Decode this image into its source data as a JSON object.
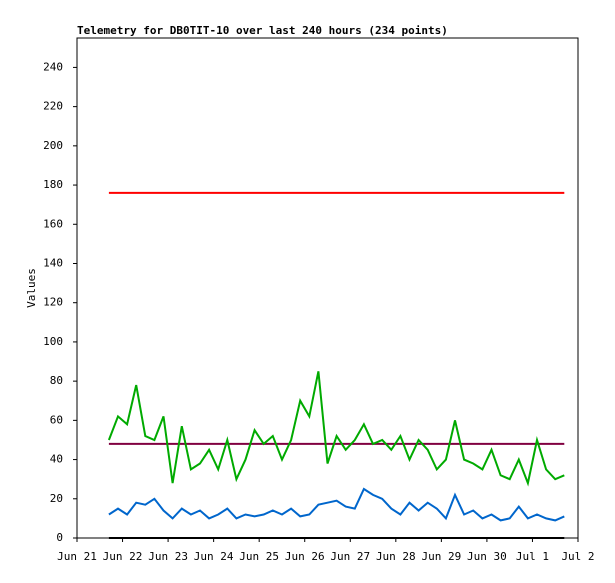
{
  "chart_data": {
    "type": "line",
    "title": "Telemetry for DB0TIT-10 over last 240 hours (234 points)",
    "y_label": "Values",
    "x": [
      0.7,
      0.9,
      1.1,
      1.3,
      1.5,
      1.7,
      1.9,
      2.1,
      2.3,
      2.5,
      2.7,
      2.9,
      3.1,
      3.3,
      3.5,
      3.7,
      3.9,
      4.1,
      4.3,
      4.5,
      4.7,
      4.9,
      5.1,
      5.3,
      5.5,
      5.7,
      5.9,
      6.1,
      6.3,
      6.5,
      6.7,
      6.9,
      7.1,
      7.3,
      7.5,
      7.7,
      7.9,
      8.1,
      8.3,
      8.5,
      8.7,
      8.9,
      9.1,
      9.3,
      9.5,
      9.7,
      9.9,
      10.1,
      10.3,
      10.5,
      10.7
    ],
    "series": [
      {
        "color": "#ff0000",
        "values": [
          176,
          176,
          176,
          176,
          176,
          176,
          176,
          176,
          176,
          176,
          176,
          176,
          176,
          176,
          176,
          176,
          176,
          176,
          176,
          176,
          176,
          176,
          176,
          176,
          176,
          176,
          176,
          176,
          176,
          176,
          176,
          176,
          176,
          176,
          176,
          176,
          176,
          176,
          176,
          176,
          176,
          176,
          176,
          176,
          176,
          176,
          176,
          176,
          176,
          176,
          176
        ]
      },
      {
        "color": "#800040",
        "values": [
          48,
          48,
          48,
          48,
          48,
          48,
          48,
          48,
          48,
          48,
          48,
          48,
          48,
          48,
          48,
          48,
          48,
          48,
          48,
          48,
          48,
          48,
          48,
          48,
          48,
          48,
          48,
          48,
          48,
          48,
          48,
          48,
          48,
          48,
          48,
          48,
          48,
          48,
          48,
          48,
          48,
          48,
          48,
          48,
          48,
          48,
          48,
          48,
          48,
          48,
          48
        ]
      },
      {
        "color": "#000000",
        "values": [
          0,
          0,
          0,
          0,
          0,
          0,
          0,
          0,
          0,
          0,
          0,
          0,
          0,
          0,
          0,
          0,
          0,
          0,
          0,
          0,
          0,
          0,
          0,
          0,
          0,
          0,
          0,
          0,
          0,
          0,
          0,
          0,
          0,
          0,
          0,
          0,
          0,
          0,
          0,
          0,
          0,
          0,
          0,
          0,
          0,
          0,
          0,
          0,
          0,
          0,
          0
        ]
      },
      {
        "color": "#00aa00",
        "values": [
          50,
          62,
          58,
          78,
          52,
          50,
          62,
          28,
          57,
          35,
          38,
          45,
          35,
          50,
          30,
          40,
          55,
          48,
          52,
          40,
          50,
          70,
          62,
          85,
          38,
          52,
          45,
          50,
          58,
          48,
          50,
          45,
          52,
          40,
          50,
          45,
          35,
          40,
          60,
          40,
          38,
          35,
          45,
          32,
          30,
          40,
          28,
          50,
          35,
          30,
          32
        ]
      },
      {
        "color": "#0066cc",
        "values": [
          12,
          15,
          12,
          18,
          17,
          20,
          14,
          10,
          15,
          12,
          14,
          10,
          12,
          15,
          10,
          12,
          11,
          12,
          14,
          12,
          15,
          11,
          12,
          17,
          18,
          19,
          16,
          15,
          25,
          22,
          20,
          15,
          12,
          18,
          14,
          18,
          15,
          10,
          22,
          12,
          14,
          10,
          12,
          9,
          10,
          16,
          10,
          12,
          10,
          9,
          11
        ]
      }
    ],
    "xlim": [
      0,
      11
    ],
    "xticks": [
      {
        "value": 0,
        "label": "Jun 21"
      },
      {
        "value": 1,
        "label": "Jun 22"
      },
      {
        "value": 2,
        "label": "Jun 23"
      },
      {
        "value": 3,
        "label": "Jun 24"
      },
      {
        "value": 4,
        "label": "Jun 25"
      },
      {
        "value": 5,
        "label": "Jun 26"
      },
      {
        "value": 6,
        "label": "Jun 27"
      },
      {
        "value": 7,
        "label": "Jun 28"
      },
      {
        "value": 8,
        "label": "Jun 29"
      },
      {
        "value": 9,
        "label": "Jun 30"
      },
      {
        "value": 10,
        "label": "Jul 1"
      },
      {
        "value": 11,
        "label": "Jul 2"
      }
    ],
    "ylim": [
      0,
      255
    ],
    "yticks": [
      0,
      20,
      40,
      60,
      80,
      100,
      120,
      140,
      160,
      180,
      200,
      220,
      240
    ]
  }
}
